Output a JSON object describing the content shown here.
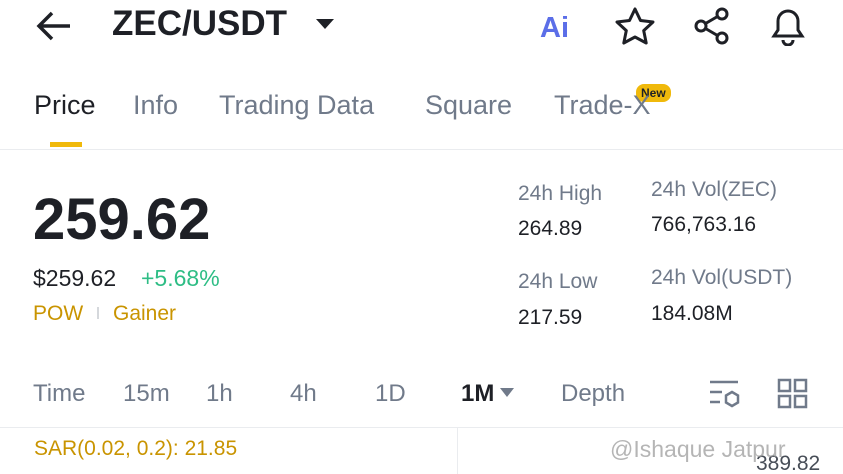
{
  "header": {
    "pair": "ZEC/USDT",
    "ai_label": "Ai"
  },
  "tabs": {
    "items": [
      "Price",
      "Info",
      "Trading Data",
      "Square",
      "Trade-X"
    ],
    "active": 0,
    "badge": "New"
  },
  "price": {
    "last": "259.62",
    "usd": "$259.62",
    "change": "+5.68%",
    "tags": [
      "POW",
      "Gainer"
    ]
  },
  "stats": [
    {
      "label": "24h High",
      "value": "264.89"
    },
    {
      "label": "24h Vol(ZEC)",
      "value": "766,763.16"
    },
    {
      "label": "24h Low",
      "value": "217.59"
    },
    {
      "label": "24h Vol(USDT)",
      "value": "184.08M"
    }
  ],
  "intervals": {
    "items": [
      "Time",
      "15m",
      "1h",
      "4h",
      "1D",
      "1M",
      "Depth"
    ],
    "active": 5
  },
  "indicator": {
    "sar": "SAR(0.02, 0.2): 21.85",
    "right_value": "389.82"
  },
  "watermark": "@Ishaque Jatpur"
}
